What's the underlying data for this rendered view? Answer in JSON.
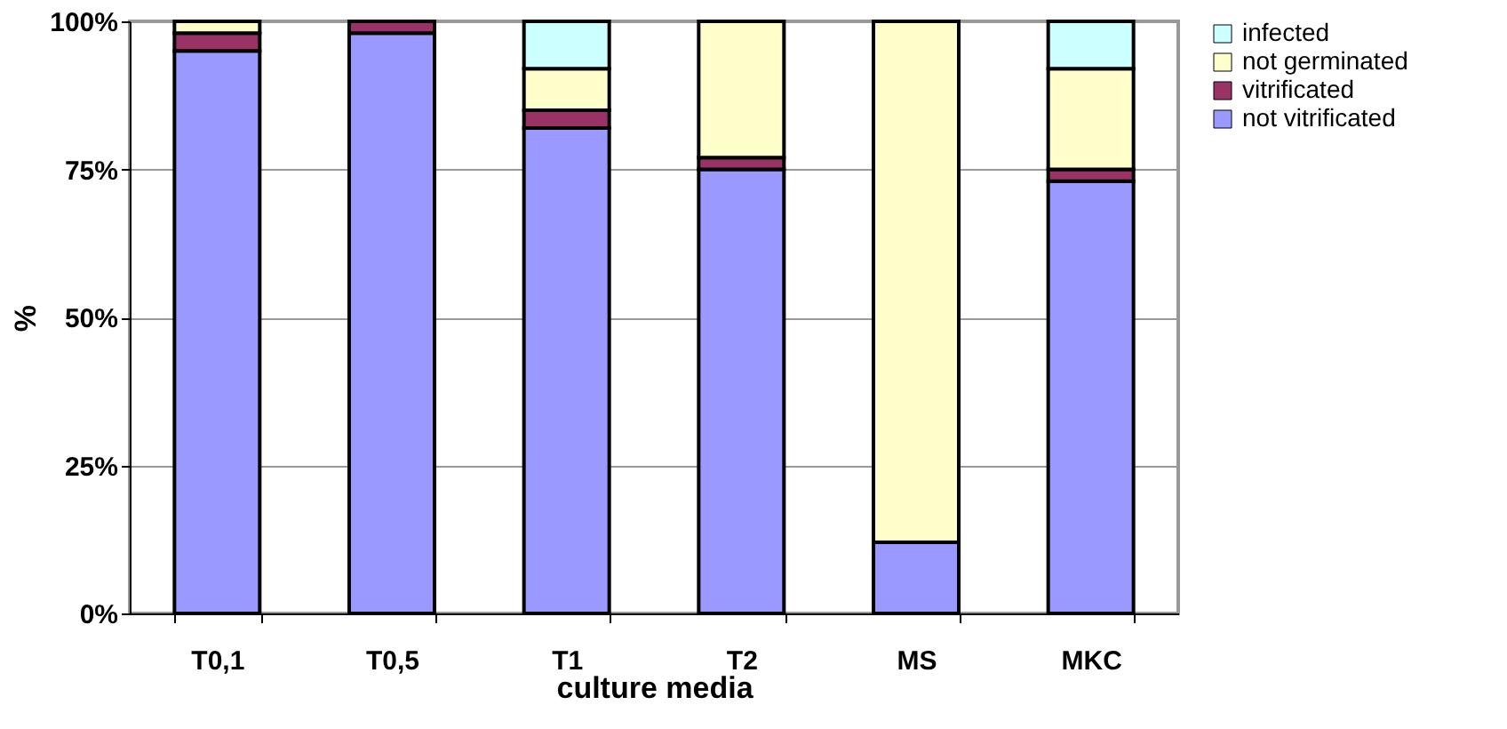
{
  "chart_data": {
    "type": "bar",
    "stacked": true,
    "xlabel": "culture media",
    "ylabel": "%",
    "categories": [
      "T0,1",
      "T0,5",
      "T1",
      "T2",
      "MS",
      "MKC"
    ],
    "series": [
      {
        "name": "not vitrificated",
        "color": "#9999ff",
        "values": [
          95,
          98,
          82,
          75,
          12,
          73
        ]
      },
      {
        "name": "vitrificated",
        "color": "#993366",
        "values": [
          3,
          2,
          3,
          2,
          0,
          2
        ]
      },
      {
        "name": "not germinated",
        "color": "#ffffcc",
        "values": [
          2,
          0,
          7,
          23,
          88,
          17
        ]
      },
      {
        "name": "infected",
        "color": "#ccffff",
        "values": [
          0,
          0,
          8,
          0,
          0,
          8
        ]
      }
    ],
    "ylim": [
      0,
      100
    ],
    "yticks": [
      {
        "value": 0,
        "label": "0%"
      },
      {
        "value": 25,
        "label": "25%"
      },
      {
        "value": 50,
        "label": "50%"
      },
      {
        "value": 75,
        "label": "75%"
      },
      {
        "value": 100,
        "label": "100%"
      }
    ],
    "grid": "y",
    "legend": "right"
  }
}
